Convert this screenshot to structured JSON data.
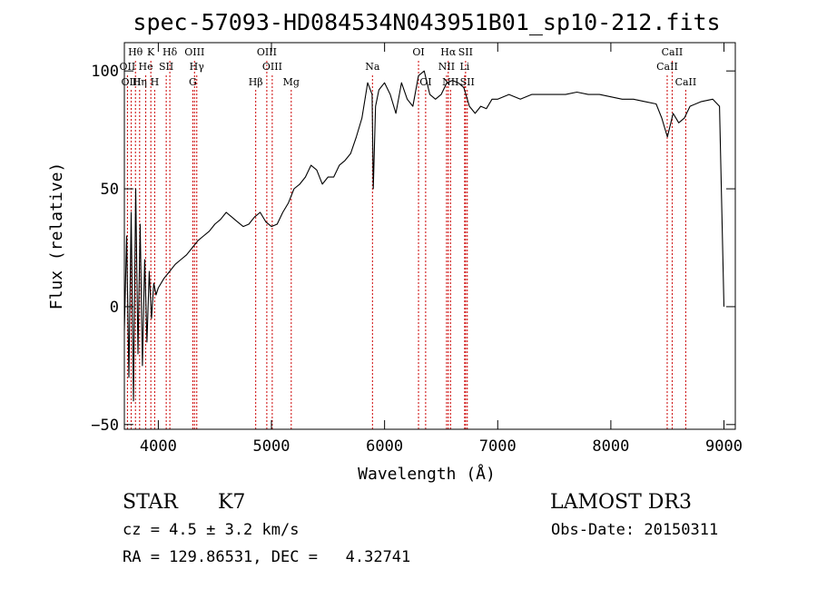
{
  "chart_data": {
    "type": "line",
    "title": "spec-57093-HD084534N043951B01_sp10-212.fits",
    "xlabel": "Wavelength (Å)",
    "ylabel": "Flux (relative)",
    "xlim": [
      3700,
      9100
    ],
    "ylim": [
      -52,
      112
    ],
    "x_ticks": [
      4000,
      5000,
      6000,
      7000,
      8000,
      9000
    ],
    "y_ticks": [
      -50,
      0,
      50,
      100
    ],
    "grid": false,
    "series": [
      {
        "x": [
          3700,
          3720,
          3740,
          3760,
          3780,
          3800,
          3820,
          3840,
          3860,
          3880,
          3900,
          3920,
          3940,
          3960,
          3980,
          4000,
          4050,
          4100,
          4150,
          4200,
          4250,
          4300,
          4350,
          4400,
          4450,
          4500,
          4550,
          4600,
          4650,
          4700,
          4750,
          4800,
          4850,
          4900,
          4950,
          5000,
          5050,
          5100,
          5150,
          5200,
          5250,
          5300,
          5350,
          5400,
          5450,
          5500,
          5550,
          5600,
          5650,
          5700,
          5750,
          5800,
          5850,
          5890,
          5900,
          5920,
          5950,
          6000,
          6050,
          6100,
          6150,
          6200,
          6250,
          6300,
          6350,
          6400,
          6450,
          6500,
          6550,
          6600,
          6650,
          6700,
          6750,
          6800,
          6850,
          6900,
          6950,
          7000,
          7100,
          7200,
          7300,
          7400,
          7500,
          7600,
          7700,
          7800,
          7900,
          8000,
          8100,
          8200,
          8300,
          8400,
          8450,
          8500,
          8550,
          8600,
          8650,
          8700,
          8800,
          8900,
          8960,
          9000
        ],
        "y": [
          -10,
          30,
          -30,
          40,
          -40,
          50,
          -20,
          35,
          -25,
          20,
          -15,
          15,
          -5,
          10,
          5,
          8,
          12,
          15,
          18,
          20,
          22,
          25,
          28,
          30,
          32,
          35,
          37,
          40,
          38,
          36,
          34,
          35,
          38,
          40,
          36,
          34,
          35,
          40,
          44,
          50,
          52,
          55,
          60,
          58,
          52,
          55,
          55,
          60,
          62,
          65,
          72,
          80,
          95,
          90,
          50,
          85,
          92,
          95,
          90,
          82,
          95,
          88,
          85,
          98,
          100,
          90,
          88,
          90,
          95,
          96,
          95,
          93,
          85,
          82,
          85,
          84,
          88,
          88,
          90,
          88,
          90,
          90,
          90,
          90,
          91,
          90,
          90,
          89,
          88,
          88,
          87,
          86,
          80,
          72,
          82,
          78,
          80,
          85,
          87,
          88,
          85,
          0
        ]
      }
    ],
    "lines": [
      {
        "name": "Hθ",
        "x": 3798,
        "row": 0
      },
      {
        "name": "K",
        "x": 3934,
        "row": 0
      },
      {
        "name": "Hδ",
        "x": 4102,
        "row": 0
      },
      {
        "name": "OIII",
        "x": 4320,
        "row": 0
      },
      {
        "name": "OIII",
        "x": 4959,
        "row": 0
      },
      {
        "name": "OI",
        "x": 6300,
        "row": 0
      },
      {
        "name": "Hα",
        "x": 6563,
        "row": 0
      },
      {
        "name": "SII",
        "x": 6716,
        "row": 0
      },
      {
        "name": "CaII",
        "x": 8542,
        "row": 0
      },
      {
        "name": "OII",
        "x": 3727,
        "row": 1
      },
      {
        "name": "He",
        "x": 3889,
        "row": 1
      },
      {
        "name": "SII",
        "x": 4070,
        "row": 1
      },
      {
        "name": "Hγ",
        "x": 4340,
        "row": 1
      },
      {
        "name": "OIII",
        "x": 5007,
        "row": 1
      },
      {
        "name": "Na",
        "x": 5893,
        "row": 1
      },
      {
        "name": "NII",
        "x": 6548,
        "row": 1
      },
      {
        "name": "Li",
        "x": 6708,
        "row": 1
      },
      {
        "name": "CaII",
        "x": 8498,
        "row": 1
      },
      {
        "name": "OIII",
        "x": 3760,
        "row": 2
      },
      {
        "name": "Hη",
        "x": 3835,
        "row": 2
      },
      {
        "name": "H",
        "x": 3968,
        "row": 2
      },
      {
        "name": "G",
        "x": 4305,
        "row": 2
      },
      {
        "name": "Hβ",
        "x": 4861,
        "row": 2
      },
      {
        "name": "Mg",
        "x": 5175,
        "row": 2
      },
      {
        "name": "OI",
        "x": 6363,
        "row": 2
      },
      {
        "name": "NII",
        "x": 6583,
        "row": 2
      },
      {
        "name": "SII",
        "x": 6731,
        "row": 2
      },
      {
        "name": "CaII",
        "x": 8662,
        "row": 2
      }
    ]
  },
  "info": {
    "class_label": "STAR",
    "subclass": "K7",
    "survey": "LAMOST DR3",
    "cz": "cz = 4.5 ± 3.2 km/s",
    "obs_date": "Obs-Date: 20150311",
    "radec": "RA = 129.86531, DEC =   4.32741"
  }
}
